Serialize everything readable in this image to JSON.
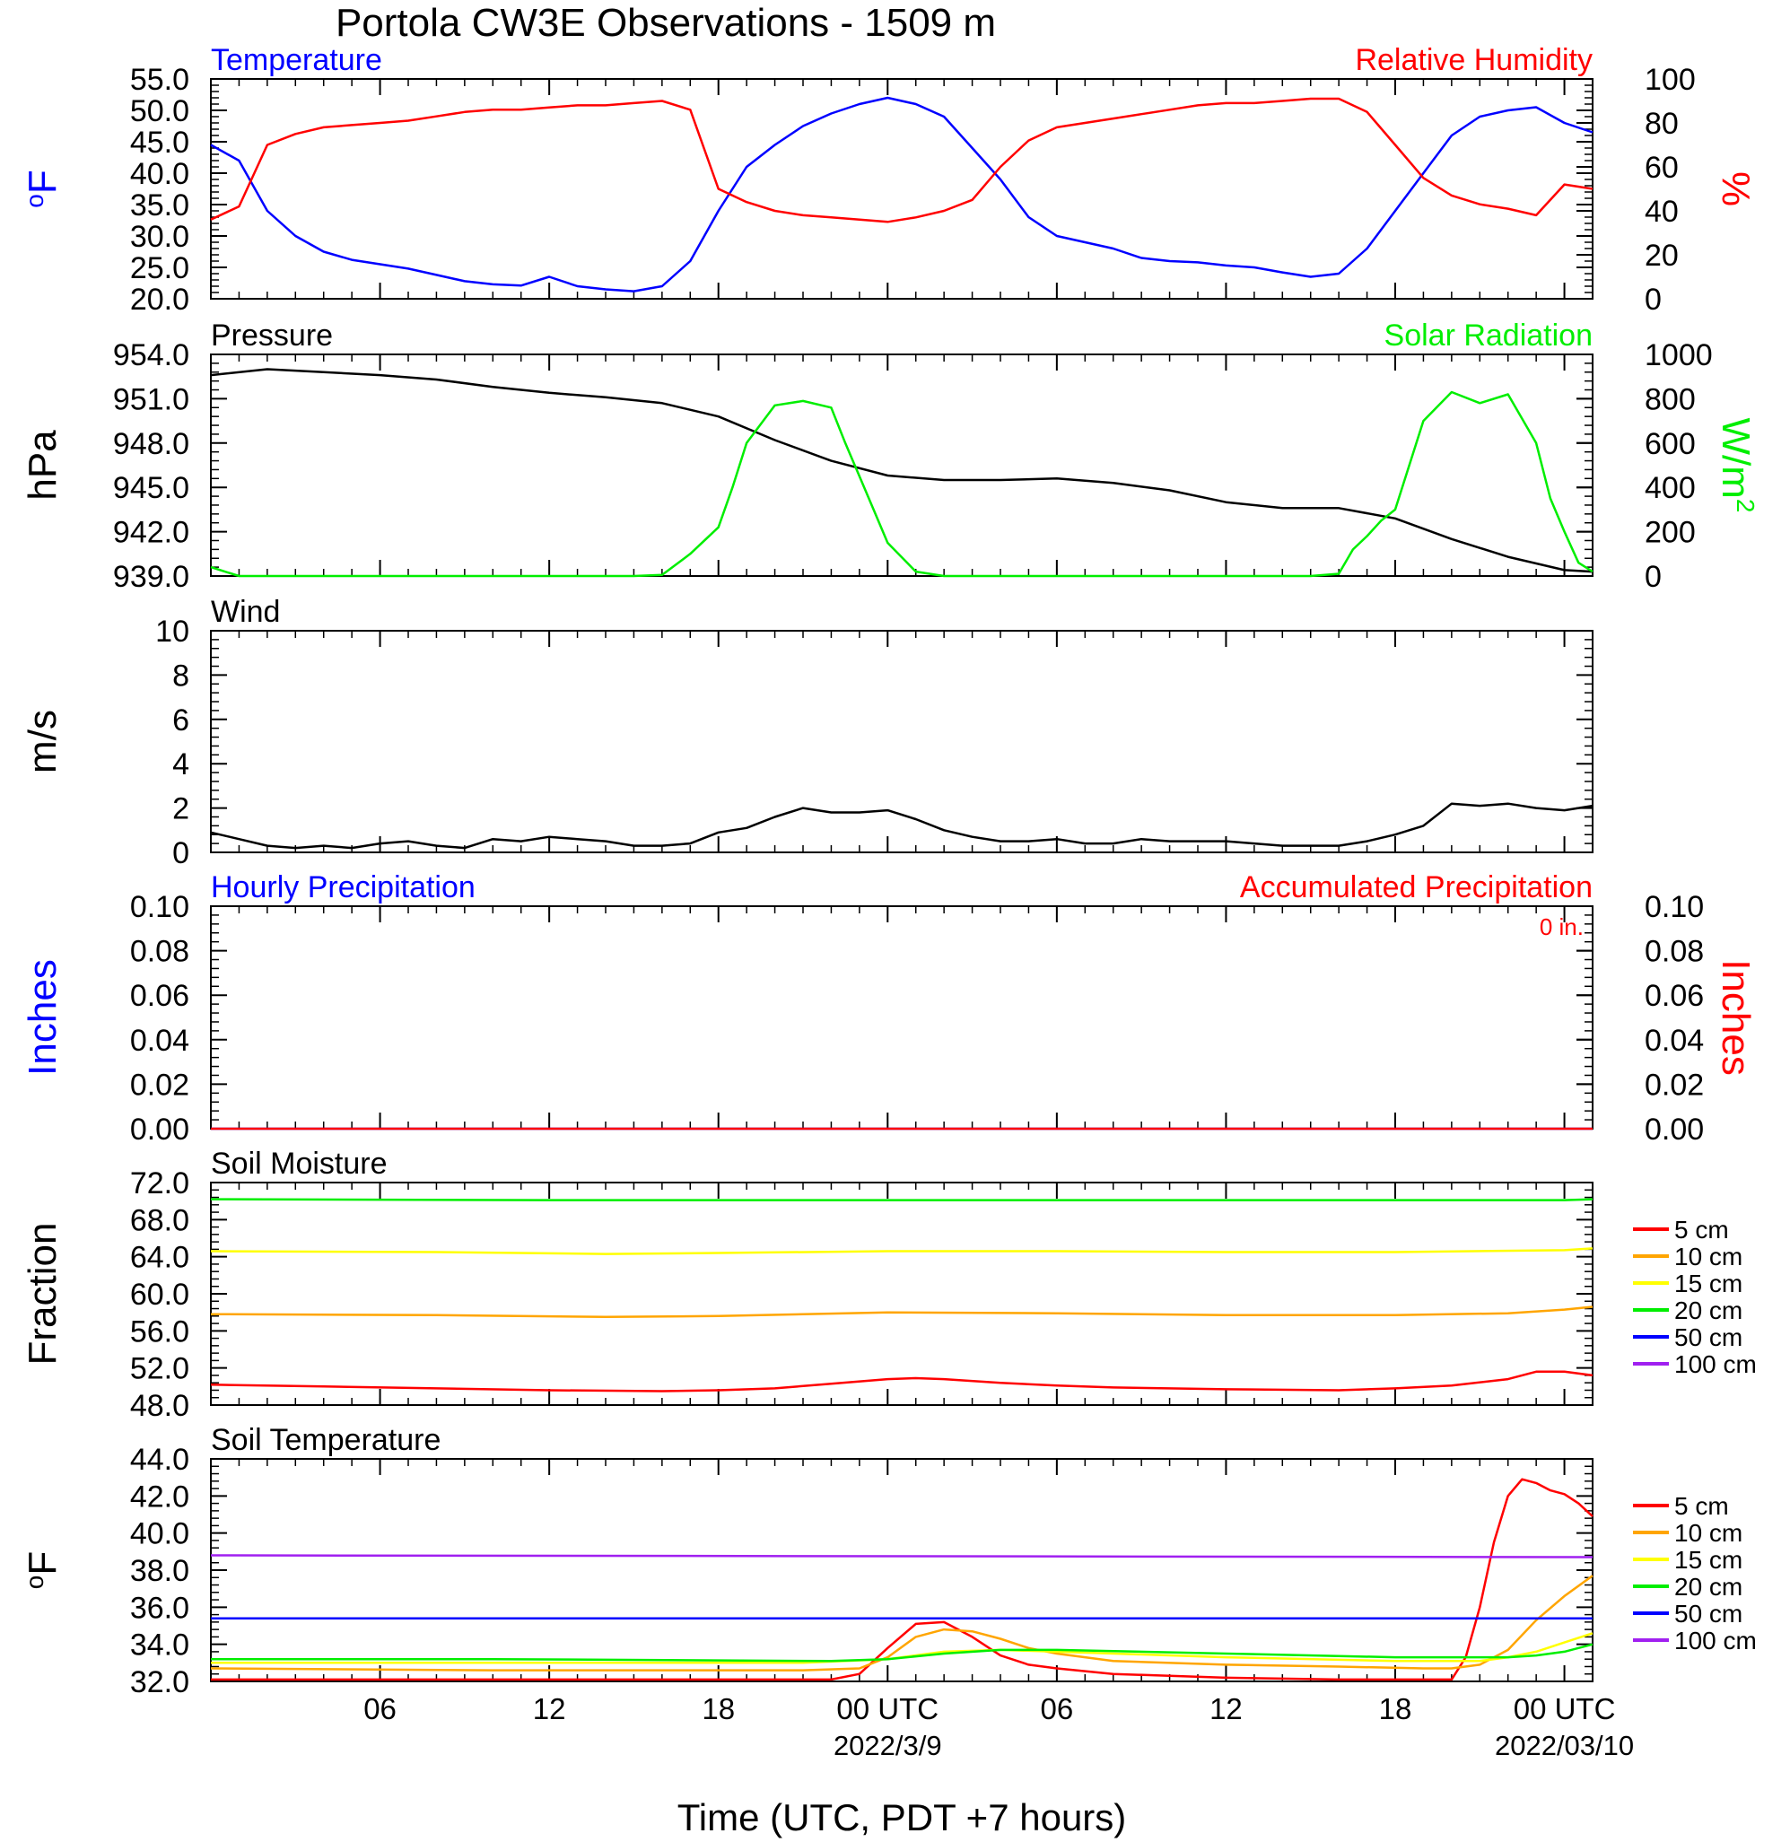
{
  "title": "Portola CW3E Observations - 1509 m",
  "xlabel": "Time (UTC, PDT +7 hours)",
  "x_ticks": [
    {
      "hour": 6,
      "label": "06",
      "sub": ""
    },
    {
      "hour": 12,
      "label": "12",
      "sub": ""
    },
    {
      "hour": 18,
      "label": "18",
      "sub": ""
    },
    {
      "hour": 24,
      "label": "00 UTC",
      "sub": "2022/3/9"
    },
    {
      "hour": 30,
      "label": "06",
      "sub": ""
    },
    {
      "hour": 36,
      "label": "12",
      "sub": ""
    },
    {
      "hour": 42,
      "label": "18",
      "sub": ""
    },
    {
      "hour": 48,
      "label": "00 UTC",
      "sub": "2022/03/10"
    }
  ],
  "colors": {
    "blue": "#0000ff",
    "red": "#ff0000",
    "green": "#00ee00",
    "black": "#000000",
    "orange": "#ffa500",
    "yellow": "#ffff00",
    "purple": "#a020f0"
  },
  "chart_data": [
    {
      "type": "line",
      "panel": "temperature_humidity",
      "title_left": "Temperature",
      "title_right": "Relative Humidity",
      "ylabel_left": "oF",
      "ylabel_right": "%",
      "x_range_hours": [
        0,
        49
      ],
      "ylim_left": [
        20,
        55
      ],
      "yticks_left": [
        "20.0",
        "25.0",
        "30.0",
        "35.0",
        "40.0",
        "45.0",
        "50.0",
        "55.0"
      ],
      "ylim_right": [
        0,
        100
      ],
      "yticks_right": [
        "0",
        "20",
        "40",
        "60",
        "80",
        "100"
      ],
      "series": [
        {
          "name": "Temperature",
          "axis": "left",
          "color": "#0000ff",
          "x": [
            0,
            1,
            2,
            3,
            4,
            5,
            6,
            7,
            8,
            9,
            10,
            11,
            12,
            13,
            14,
            15,
            16,
            17,
            18,
            19,
            20,
            21,
            22,
            23,
            24,
            25,
            26,
            27,
            28,
            29,
            30,
            31,
            32,
            33,
            34,
            35,
            36,
            37,
            38,
            39,
            40,
            41,
            42,
            43,
            44,
            45,
            46,
            47,
            48,
            49
          ],
          "y": [
            44.5,
            42,
            34,
            30,
            27.5,
            26.2,
            25.5,
            24.8,
            23.8,
            22.8,
            22.3,
            22.1,
            23.5,
            22,
            21.5,
            21.2,
            22,
            26,
            34,
            41,
            44.5,
            47.5,
            49.5,
            51,
            52,
            51,
            49,
            44,
            39,
            33,
            30,
            29,
            28,
            26.5,
            26,
            25.8,
            25.3,
            25,
            24.2,
            23.5,
            24,
            28,
            34,
            40,
            46,
            49,
            50,
            50.5,
            48,
            46.5
          ]
        },
        {
          "name": "Relative Humidity",
          "axis": "right",
          "color": "#ff0000",
          "x": [
            0,
            1,
            2,
            3,
            4,
            5,
            6,
            7,
            8,
            9,
            10,
            11,
            12,
            13,
            14,
            15,
            16,
            17,
            18,
            19,
            20,
            21,
            22,
            23,
            24,
            25,
            26,
            27,
            28,
            29,
            30,
            31,
            32,
            33,
            34,
            35,
            36,
            37,
            38,
            39,
            40,
            41,
            42,
            43,
            44,
            45,
            46,
            47,
            48,
            49
          ],
          "y": [
            36,
            42,
            70,
            75,
            78,
            79,
            80,
            81,
            83,
            85,
            86,
            86,
            87,
            88,
            88,
            89,
            90,
            86,
            50,
            44,
            40,
            38,
            37,
            36,
            35,
            37,
            40,
            45,
            60,
            72,
            78,
            80,
            82,
            84,
            86,
            88,
            89,
            89,
            90,
            91,
            91,
            85,
            70,
            55,
            47,
            43,
            41,
            38,
            52,
            50
          ]
        }
      ]
    },
    {
      "type": "line",
      "panel": "pressure_solar",
      "title_left": "Pressure",
      "title_right": "Solar Radiation",
      "ylabel_left": "hPa",
      "ylabel_right": "W/m2",
      "x_range_hours": [
        0,
        49
      ],
      "ylim_left": [
        939,
        954
      ],
      "yticks_left": [
        "939.0",
        "942.0",
        "945.0",
        "948.0",
        "951.0",
        "954.0"
      ],
      "ylim_right": [
        0,
        1000
      ],
      "yticks_right": [
        "0",
        "200",
        "400",
        "600",
        "800",
        "1000"
      ],
      "series": [
        {
          "name": "Pressure",
          "axis": "left",
          "color": "#000000",
          "x": [
            0,
            2,
            4,
            6,
            8,
            10,
            12,
            14,
            16,
            18,
            20,
            22,
            24,
            26,
            28,
            30,
            32,
            34,
            36,
            38,
            40,
            42,
            44,
            46,
            48,
            49
          ],
          "y": [
            952.6,
            953.0,
            952.8,
            952.6,
            952.3,
            951.8,
            951.4,
            951.1,
            950.7,
            949.8,
            948.2,
            946.8,
            945.8,
            945.5,
            945.5,
            945.6,
            945.3,
            944.8,
            944.0,
            943.6,
            943.6,
            942.9,
            941.5,
            940.3,
            939.4,
            939.3
          ]
        },
        {
          "name": "Solar Radiation",
          "axis": "right",
          "color": "#00ee00",
          "x": [
            0,
            1,
            2,
            3,
            4,
            5,
            6,
            7,
            8,
            9,
            10,
            11,
            12,
            13,
            14,
            15,
            16,
            17,
            18,
            18.5,
            19,
            20,
            21,
            22,
            22.5,
            23,
            23.5,
            24,
            25,
            26,
            27,
            28,
            29,
            30,
            31,
            32,
            33,
            34,
            35,
            36,
            37,
            38,
            39,
            40,
            40.5,
            41,
            41.5,
            42,
            43,
            44,
            45,
            46,
            47,
            47.5,
            48,
            48.5,
            49
          ],
          "y": [
            40,
            0,
            0,
            0,
            0,
            0,
            0,
            0,
            0,
            0,
            0,
            0,
            0,
            0,
            0,
            0,
            5,
            100,
            220,
            400,
            600,
            770,
            790,
            760,
            600,
            450,
            300,
            150,
            20,
            0,
            0,
            0,
            0,
            0,
            0,
            0,
            0,
            0,
            0,
            0,
            0,
            0,
            0,
            10,
            120,
            180,
            250,
            300,
            700,
            830,
            780,
            820,
            600,
            350,
            200,
            60,
            20
          ]
        }
      ]
    },
    {
      "type": "line",
      "panel": "wind",
      "title_left": "Wind",
      "ylabel_left": "m/s",
      "x_range_hours": [
        0,
        49
      ],
      "ylim_left": [
        0,
        10
      ],
      "yticks_left": [
        "0",
        "2",
        "4",
        "6",
        "8",
        "10"
      ],
      "series": [
        {
          "name": "Wind",
          "axis": "left",
          "color": "#000000",
          "x": [
            0,
            1,
            2,
            3,
            4,
            5,
            6,
            7,
            8,
            9,
            10,
            11,
            12,
            13,
            14,
            15,
            16,
            17,
            18,
            19,
            20,
            21,
            22,
            23,
            24,
            25,
            26,
            27,
            28,
            29,
            30,
            31,
            32,
            33,
            34,
            35,
            36,
            37,
            38,
            39,
            40,
            41,
            42,
            43,
            44,
            45,
            46,
            47,
            48,
            49
          ],
          "y": [
            0.9,
            0.6,
            0.3,
            0.2,
            0.3,
            0.2,
            0.4,
            0.5,
            0.3,
            0.2,
            0.6,
            0.5,
            0.7,
            0.6,
            0.5,
            0.3,
            0.3,
            0.4,
            0.9,
            1.1,
            1.6,
            2.0,
            1.8,
            1.8,
            1.9,
            1.5,
            1.0,
            0.7,
            0.5,
            0.5,
            0.6,
            0.4,
            0.4,
            0.6,
            0.5,
            0.5,
            0.5,
            0.4,
            0.3,
            0.3,
            0.3,
            0.5,
            0.8,
            1.2,
            2.2,
            2.1,
            2.2,
            2.0,
            1.9,
            2.1
          ]
        }
      ]
    },
    {
      "type": "line",
      "panel": "precipitation",
      "title_left": "Hourly Precipitation",
      "title_right": "Accumulated Precipitation",
      "annotation": "0 in.",
      "ylabel_left": "Inches",
      "ylabel_right": "Inches",
      "x_range_hours": [
        0,
        49
      ],
      "ylim_left": [
        0,
        0.1
      ],
      "yticks_left": [
        "0.00",
        "0.02",
        "0.04",
        "0.06",
        "0.08",
        "0.10"
      ],
      "yticks_right": [
        "0.00",
        "0.02",
        "0.04",
        "0.06",
        "0.08",
        "0.10"
      ],
      "series": [
        {
          "name": "Hourly Precipitation",
          "axis": "left",
          "color": "#0000ff",
          "x": [
            0,
            49
          ],
          "y": [
            0,
            0
          ]
        },
        {
          "name": "Accumulated Precipitation",
          "axis": "left",
          "color": "#ff0000",
          "x": [
            0,
            49
          ],
          "y": [
            0,
            0
          ]
        }
      ]
    },
    {
      "type": "line",
      "panel": "soil_moisture",
      "title_left": "Soil Moisture",
      "ylabel_left": "Fraction",
      "x_range_hours": [
        0,
        49
      ],
      "ylim_left": [
        48,
        72
      ],
      "yticks_left": [
        "48.0",
        "52.0",
        "56.0",
        "60.0",
        "64.0",
        "68.0",
        "72.0"
      ],
      "legend": [
        "5 cm",
        "10 cm",
        "15 cm",
        "20 cm",
        "50 cm",
        "100 cm"
      ],
      "legend_colors": [
        "#ff0000",
        "#ffa500",
        "#ffff00",
        "#00ee00",
        "#0000ff",
        "#a020f0"
      ],
      "series": [
        {
          "name": "5 cm",
          "color": "#ff0000",
          "x": [
            0,
            4,
            8,
            12,
            16,
            18,
            20,
            22,
            24,
            25,
            26,
            28,
            30,
            32,
            36,
            40,
            42,
            44,
            46,
            47,
            48,
            49
          ],
          "y": [
            50.2,
            50.0,
            49.8,
            49.6,
            49.5,
            49.6,
            49.8,
            50.3,
            50.8,
            50.9,
            50.8,
            50.4,
            50.1,
            49.9,
            49.7,
            49.6,
            49.8,
            50.1,
            50.8,
            51.6,
            51.6,
            51.2
          ]
        },
        {
          "name": "10 cm",
          "color": "#ffa500",
          "x": [
            0,
            8,
            14,
            18,
            24,
            30,
            36,
            42,
            46,
            48,
            49
          ],
          "y": [
            57.8,
            57.7,
            57.5,
            57.6,
            58.0,
            57.9,
            57.7,
            57.7,
            57.9,
            58.3,
            58.6
          ]
        },
        {
          "name": "15 cm",
          "color": "#ffff00",
          "x": [
            0,
            8,
            14,
            18,
            24,
            30,
            36,
            42,
            48,
            49
          ],
          "y": [
            64.6,
            64.5,
            64.3,
            64.4,
            64.6,
            64.6,
            64.5,
            64.5,
            64.7,
            64.9
          ]
        },
        {
          "name": "20 cm",
          "color": "#00ee00",
          "x": [
            0,
            12,
            24,
            36,
            48,
            49
          ],
          "y": [
            70.2,
            70.1,
            70.1,
            70.1,
            70.1,
            70.2
          ]
        }
      ]
    },
    {
      "type": "line",
      "panel": "soil_temperature",
      "title_left": "Soil Temperature",
      "ylabel_left": "oF",
      "x_range_hours": [
        0,
        49
      ],
      "ylim_left": [
        32,
        44
      ],
      "yticks_left": [
        "32.0",
        "34.0",
        "36.0",
        "38.0",
        "40.0",
        "42.0",
        "44.0"
      ],
      "legend": [
        "5 cm",
        "10 cm",
        "15 cm",
        "20 cm",
        "50 cm",
        "100 cm"
      ],
      "legend_colors": [
        "#ff0000",
        "#ffa500",
        "#ffff00",
        "#00ee00",
        "#0000ff",
        "#a020f0"
      ],
      "series": [
        {
          "name": "5 cm",
          "color": "#ff0000",
          "x": [
            0,
            10,
            20,
            22,
            23,
            24,
            25,
            26,
            27,
            28,
            29,
            30,
            32,
            36,
            40,
            43,
            44,
            44.5,
            45,
            45.5,
            46,
            46.5,
            47,
            47.5,
            48,
            48.5,
            49
          ],
          "y": [
            32.1,
            32.1,
            32.1,
            32.1,
            32.4,
            33.8,
            35.1,
            35.2,
            34.4,
            33.4,
            32.9,
            32.7,
            32.4,
            32.2,
            32.1,
            32.1,
            32.1,
            33.3,
            36,
            39.5,
            42,
            42.9,
            42.7,
            42.3,
            42.1,
            41.6,
            40.9
          ]
        },
        {
          "name": "10 cm",
          "color": "#ffa500",
          "x": [
            0,
            10,
            21,
            23,
            24,
            25,
            26,
            27,
            28,
            29,
            30,
            32,
            36,
            40,
            43,
            44,
            45,
            46,
            47,
            48,
            49
          ],
          "y": [
            32.7,
            32.6,
            32.6,
            32.7,
            33.3,
            34.4,
            34.8,
            34.7,
            34.3,
            33.8,
            33.5,
            33.1,
            32.9,
            32.8,
            32.7,
            32.7,
            32.9,
            33.7,
            35.3,
            36.6,
            37.7
          ]
        },
        {
          "name": "15 cm",
          "color": "#ffff00",
          "x": [
            0,
            10,
            21,
            24,
            26,
            28,
            30,
            36,
            42,
            45,
            46,
            47,
            48,
            49
          ],
          "y": [
            33.0,
            33.0,
            33.0,
            33.2,
            33.6,
            33.7,
            33.6,
            33.3,
            33.1,
            33.1,
            33.3,
            33.6,
            34.1,
            34.6
          ]
        },
        {
          "name": "20 cm",
          "color": "#00ee00",
          "x": [
            0,
            10,
            22,
            24,
            26,
            28,
            30,
            36,
            42,
            46,
            47,
            48,
            49
          ],
          "y": [
            33.2,
            33.2,
            33.1,
            33.2,
            33.5,
            33.7,
            33.7,
            33.5,
            33.3,
            33.3,
            33.4,
            33.6,
            34.0
          ]
        },
        {
          "name": "50 cm",
          "color": "#0000ff",
          "x": [
            0,
            49
          ],
          "y": [
            35.4,
            35.4
          ]
        },
        {
          "name": "100 cm",
          "color": "#a020f0",
          "x": [
            0,
            49
          ],
          "y": [
            38.8,
            38.7
          ]
        }
      ]
    }
  ]
}
